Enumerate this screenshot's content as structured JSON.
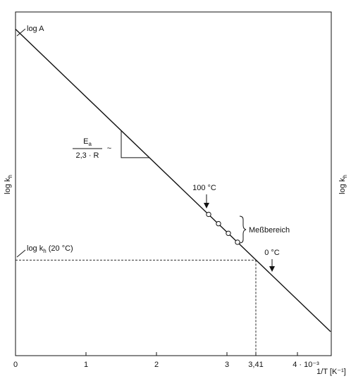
{
  "chart_data": {
    "type": "line",
    "xlabel": "1/T [K⁻¹]",
    "ylabel": "log k",
    "ylabel_sub": "h",
    "xlim": [
      0,
      4.5
    ],
    "x_ticks": [
      {
        "value": 0,
        "label": "0"
      },
      {
        "value": 1,
        "label": "1"
      },
      {
        "value": 2,
        "label": "2"
      },
      {
        "value": 3,
        "label": "3"
      },
      {
        "value": 3.41,
        "label": "3,41"
      },
      {
        "value": 4,
        "label": "4 · 10⁻³"
      }
    ],
    "series": [
      {
        "x": [
          0,
          4.47
        ],
        "y": [
          0.95,
          0.07
        ]
      }
    ],
    "measured_points": {
      "x": [
        2.74,
        2.88,
        3.02,
        3.15
      ],
      "y": [
        0.411,
        0.384,
        0.356,
        0.33
      ]
    },
    "annotations": {
      "intercept": {
        "text": "log A"
      },
      "slope_numerator_main": "E",
      "slope_numerator_sub": "a",
      "slope_denominator": "2,3 · R",
      "slope_tilde": "~",
      "temp_high": "100 °C",
      "temp_low": "0 °C",
      "range_label": "Meßbereich",
      "ref_level_main": "log k",
      "ref_level_sub": "h",
      "ref_level_suffix": " (20 °C)",
      "ref_x": 3.41,
      "ref_y": 0.278
    }
  }
}
